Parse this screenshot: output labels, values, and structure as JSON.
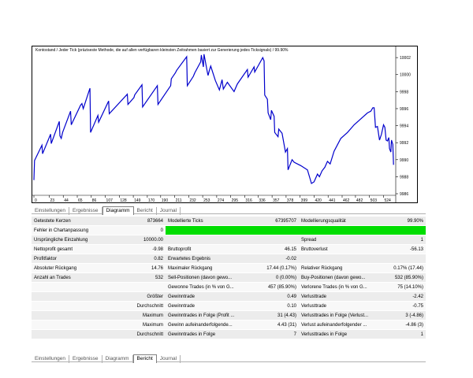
{
  "chart_data": {
    "type": "line",
    "title": "Kontostand / Jeder Tick (präziseste Methode, die auf allen verfügbaren kleinsten Zeitrahmen basiert zur Generierung jedes Ticksignals) / 99.90%",
    "x_ticks": [
      "0",
      "23",
      "44",
      "65",
      "86",
      "107",
      "128",
      "149",
      "170",
      "190",
      "211",
      "232",
      "253",
      "274",
      "295",
      "316",
      "336",
      "357",
      "378",
      "399",
      "420",
      "441",
      "462",
      "482",
      "503",
      "524"
    ],
    "y_ticks": [
      "10002",
      "10000",
      "9998",
      "9996",
      "9994",
      "9992",
      "9990",
      "9988",
      "9986"
    ],
    "xlim": [
      0,
      540
    ],
    "ylim": [
      9986,
      10003.4
    ],
    "color": "#0000cc",
    "x": [
      0,
      1,
      12,
      13,
      25,
      26,
      38,
      39,
      41,
      43,
      55,
      56,
      70,
      72,
      74,
      84,
      85,
      96,
      97,
      112,
      113,
      140,
      141,
      150,
      151,
      162,
      163,
      185,
      186,
      205,
      206,
      212,
      214,
      229,
      230,
      239,
      241,
      250,
      251,
      254,
      255,
      260,
      261,
      263,
      265,
      272,
      278,
      282,
      284,
      290,
      300,
      305,
      320,
      321,
      330,
      331,
      343,
      345,
      346,
      350,
      351,
      355,
      356,
      360,
      361,
      366,
      367,
      372,
      377,
      380,
      381,
      387,
      390,
      400,
      410,
      416,
      420,
      425,
      428,
      432,
      436,
      440,
      444,
      450,
      460,
      470,
      480,
      490,
      500,
      505,
      508,
      510,
      512,
      515,
      518,
      521,
      524,
      526,
      528,
      530,
      532,
      533,
      535,
      536,
      538,
      539
    ],
    "y": [
      9987.6,
      9989.9,
      9991.7,
      9990.7,
      9993.0,
      9991.9,
      9994.5,
      9992.8,
      9992.5,
      9993.2,
      9995.7,
      9994.1,
      9996.4,
      9996.6,
      9996.0,
      9998.4,
      9993.2,
      9995.2,
      9994.4,
      9996.9,
      9995.4,
      9997.7,
      9996.5,
      9997.3,
      9997.6,
      9998.8,
      9996.2,
      9998.7,
      9996.5,
      9998.7,
      9999.5,
      10000.2,
      10000.5,
      10002.1,
      9998.7,
      9999.8,
      10000.2,
      10001.5,
      10002.3,
      10000.9,
      10002.4,
      10000.3,
      9999.9,
      10000.5,
      10001.0,
      9999.3,
      9998.2,
      9999.4,
      9998.3,
      9999.1,
      9998.0,
      9998.9,
      10000.6,
      9999.7,
      10000.9,
      10000.3,
      10002.0,
      10001.6,
      9997.6,
      9997.1,
      9995.5,
      9994.7,
      9995.8,
      9995.1,
      9993.2,
      9992.7,
      9993.6,
      9993.1,
      9990.9,
      9991.3,
      9988.8,
      9990.0,
      9989.7,
      9989.3,
      9988.8,
      9987.2,
      9987.4,
      9988.3,
      9988.0,
      9988.7,
      9989.1,
      9989.8,
      9989.5,
      9991.0,
      9992.5,
      9993.2,
      9994.1,
      9994.8,
      9995.5,
      9995.7,
      9996.1,
      9996.1,
      9993.8,
      9993.9,
      9992.3,
      9993.0,
      9994.1,
      9993.8,
      9992.3,
      9992.2,
      9992.6,
      9991.3,
      9990.9,
      9992.3,
      9991.8,
      9989.4
    ]
  },
  "tabs": [
    "Einstellungen",
    "Ergebnisse",
    "Diagramm",
    "Bericht",
    "Journal"
  ],
  "report_rows": [
    [
      "Getestete Kerzen",
      "873664",
      "Modellierte Ticks",
      "67395707",
      "Modellierungsqualität",
      "99.90%"
    ],
    [
      "Fehler in Chartanpassung",
      "0",
      "",
      "",
      "",
      ""
    ],
    [
      "Ursprüngliche Einzahlung",
      "10000.00",
      "",
      "",
      "Spread",
      "1"
    ],
    [
      "Nettoprofit gesamt",
      "-9.98",
      "Bruttoprofit",
      "46.15",
      "Bruttoverlust",
      "-56.13"
    ],
    [
      "Profitfaktor",
      "0.82",
      "Erwartetes Ergebnis",
      "-0.02",
      "",
      ""
    ],
    [
      "Absoluter Rückgang",
      "14.76",
      "Maximaler Rückgang",
      "17.44 (0.17%)",
      "Relativer Rückgang",
      "0.17% (17.44)"
    ],
    [
      "Anzahl an Trades",
      "532",
      "Sell-Positionen (davon gewo...",
      "0 (0.00%)",
      "Buy-Positionen (davon gewo...",
      "532 (85.90%)"
    ],
    [
      "",
      "",
      "Gewonne Trades (in % von G...",
      "457 (85.90%)",
      "Verlorene Trades (in % von G...",
      "75 (14.10%)"
    ],
    [
      "",
      "Größter",
      "Gewinntrade",
      "0.49",
      "Verlusttrade",
      "-2.42"
    ],
    [
      "",
      "Durchschnitt",
      "Gewinntrade",
      "0.10",
      "Verlusttrade",
      "-0.75"
    ],
    [
      "",
      "Maximum",
      "Gewinntrades in Folge (Profit ...",
      "31 (4.43)",
      "Verlusttrades in Folge (Verlust...",
      "3 (-4.86)"
    ],
    [
      "",
      "Maximum",
      "Gewinn aufeinanderfolgende...",
      "4.43 (31)",
      "Verlust aufeinanderfolgender ...",
      "-4.86 (3)"
    ],
    [
      "",
      "Durchschnitt",
      "Gewinntrades in Folge",
      "7",
      "Verlusttrades in Folge",
      "1"
    ]
  ]
}
